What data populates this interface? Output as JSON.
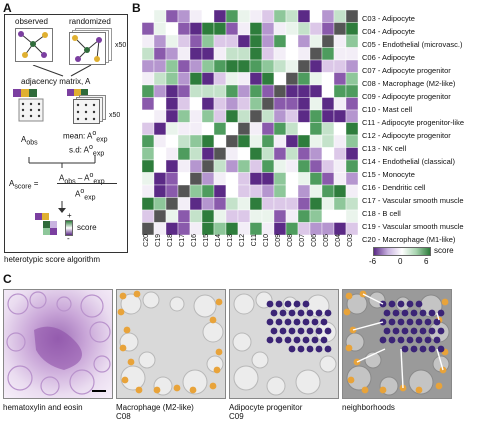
{
  "panels": {
    "a": "A",
    "b": "B",
    "c": "C"
  },
  "panelA": {
    "observed": "observed",
    "randomized": "randomized",
    "x50_top": "x50",
    "adjacency": "adjacency matrix, A",
    "x50_mid": "x50",
    "a_obs": "A",
    "a_obs_sub": "obs",
    "mean": "mean: A",
    "mean_sup": "o",
    "mean_sub": "exp",
    "sd": "s.d: A",
    "sd_sup": "o",
    "sd_sub": "exp",
    "a_score": "A",
    "a_score_sub": "score",
    "eq": "=",
    "numer": "A",
    "numer_sub1": "obs",
    "numer_minus": " – A",
    "numer_sup": "o",
    "numer_sub2": "exp",
    "denom": "A",
    "denom_sup": "o",
    "denom_sub": "exp",
    "plus": "+",
    "minus": "-",
    "score": "score",
    "caption": "heterotypic score algorithm"
  },
  "heatmap": {
    "row_labels": [
      "C03 - Adipocyte",
      "C04 - Adipocyte",
      "C05 - Endothelial (microvasc.)",
      "C06 - Adipocyte",
      "C07 - Adipocyte progenitor",
      "C08 - Macrophage (M2-like)",
      "C09 - Adipocyte progenitor",
      "C10 - Mast cell",
      "C11 - Adipocyte progenitor-like",
      "C12 - Adipocyte progenitor",
      "C13 - NK cell",
      "C14 - Endothelial (classical)",
      "C15 - Monocyte",
      "C16 - Dendritic cell",
      "C17 - Vascular smooth muscle",
      "C18 - B cell",
      "C19 - Vascular smooth muscle",
      "C20 - Macrophage (M1-like)"
    ],
    "col_labels": [
      "C20",
      "C19",
      "C18",
      "C17",
      "C16",
      "C15",
      "C14",
      "C13",
      "C12",
      "C11",
      "C10",
      "C09",
      "C08",
      "C07",
      "C06",
      "C05",
      "C04",
      "C03"
    ],
    "legend_title": "score",
    "legend_ticks": [
      "-6",
      "0",
      "6"
    ],
    "colors": {
      "neg": "#5b2a86",
      "zero": "#ffffff",
      "pos": "#2e7d3c",
      "diag": "#555555"
    }
  },
  "panelC": {
    "captions": [
      {
        "line1": "hematoxylin and eosin",
        "line2": ""
      },
      {
        "line1": "Macrophage (M2-like)",
        "line2": "C08"
      },
      {
        "line1": "Adipocyte progenitor",
        "line2": "C09"
      },
      {
        "line1": "neighborhoods",
        "line2": ""
      }
    ],
    "colors": {
      "orange": "#e8a33a",
      "purple": "#3b2476",
      "white_arrow": "#ffffff"
    }
  }
}
